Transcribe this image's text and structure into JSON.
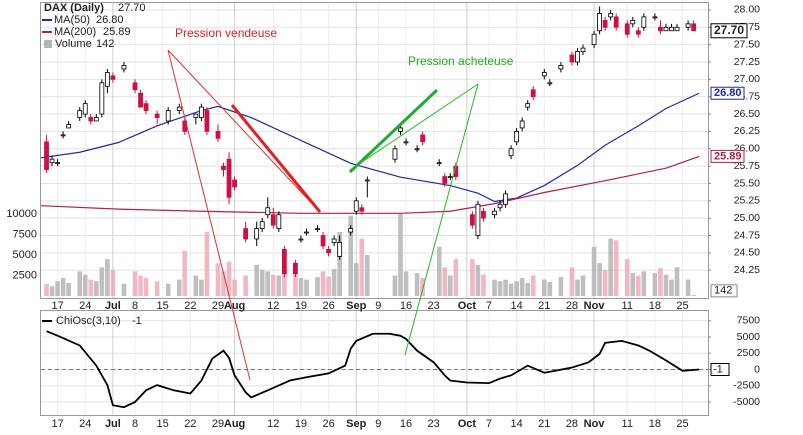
{
  "chart_data": [
    {
      "type": "candlestick",
      "name": "DAX (Daily)",
      "close_label": "27.70",
      "annotations": [
        "Pression vendeuse",
        "Pression acheteuse"
      ],
      "up_color": "#ffffff",
      "down_color": "#cc1144",
      "edge_color": "#000000",
      "x": [
        -2,
        -1,
        0,
        1,
        2,
        4,
        5,
        6,
        7,
        8,
        9,
        10,
        12,
        14,
        15,
        16,
        18,
        20,
        22,
        23,
        25,
        26,
        27,
        29,
        30,
        31,
        32,
        34,
        36,
        37,
        38,
        39,
        40,
        41,
        43,
        44,
        45,
        47,
        48,
        49,
        50,
        51,
        53,
        54,
        55,
        56,
        61,
        62,
        63,
        65,
        66,
        69,
        70,
        71,
        72,
        75,
        76,
        77,
        79,
        80,
        81,
        82,
        83,
        84,
        85,
        86,
        88,
        89,
        91,
        93,
        94,
        95,
        97,
        98,
        99,
        100,
        101,
        103,
        104,
        105,
        106,
        108,
        109,
        110,
        111,
        112,
        114,
        115
      ],
      "open": [
        26.1,
        25.8,
        25.8,
        26.2,
        26.3,
        26.45,
        26.5,
        26.45,
        26.4,
        26.5,
        26.9,
        27.05,
        27.15,
        26.95,
        26.8,
        26.65,
        26.5,
        26.4,
        26.55,
        26.4,
        26.45,
        26.45,
        26.55,
        26.25,
        25.75,
        25.85,
        25.55,
        24.85,
        24.7,
        24.85,
        25.05,
        25.05,
        24.85,
        24.55,
        24.35,
        24.7,
        24.8,
        24.85,
        24.75,
        24.55,
        24.65,
        24.45,
        24.8,
        25.1,
        25.15,
        25.55,
        25.85,
        26.25,
        26.1,
        26.0,
        26.2,
        25.8,
        25.6,
        25.6,
        25.75,
        25.05,
        24.75,
        25.1,
        25.05,
        25.15,
        25.2,
        25.9,
        26.1,
        26.3,
        26.6,
        26.85,
        27.05,
        26.95,
        27.15,
        27.35,
        27.25,
        27.4,
        27.5,
        27.7,
        27.85,
        27.9,
        27.9,
        27.8,
        27.8,
        27.7,
        27.75,
        27.9,
        27.75,
        27.7,
        27.7,
        27.7,
        27.75,
        27.8
      ],
      "high": [
        26.2,
        25.9,
        25.85,
        26.25,
        26.4,
        26.6,
        26.7,
        26.5,
        26.5,
        27.0,
        27.15,
        27.1,
        27.25,
        27.0,
        26.85,
        26.7,
        26.55,
        26.6,
        26.65,
        26.45,
        26.5,
        26.65,
        26.6,
        26.35,
        25.8,
        25.95,
        25.6,
        24.95,
        24.95,
        25.0,
        25.3,
        25.15,
        25.1,
        24.6,
        24.4,
        24.75,
        24.85,
        24.9,
        24.8,
        24.6,
        24.75,
        24.75,
        24.9,
        25.3,
        25.2,
        25.6,
        26.05,
        26.35,
        26.15,
        26.05,
        26.25,
        25.85,
        25.65,
        25.65,
        25.8,
        25.1,
        25.25,
        25.15,
        25.15,
        25.25,
        25.4,
        26.05,
        26.3,
        26.45,
        26.7,
        26.9,
        27.15,
        27.0,
        27.25,
        27.4,
        27.45,
        27.5,
        27.7,
        28.05,
        27.9,
        28.0,
        27.95,
        27.85,
        27.9,
        27.75,
        27.95,
        27.95,
        27.85,
        27.8,
        27.8,
        27.8,
        27.85,
        27.85
      ],
      "low": [
        25.65,
        25.75,
        25.75,
        26.15,
        26.3,
        26.4,
        26.45,
        26.35,
        26.4,
        26.45,
        26.8,
        26.95,
        27.1,
        26.8,
        26.6,
        26.5,
        26.35,
        26.35,
        26.5,
        26.2,
        26.35,
        26.4,
        26.2,
        26.1,
        25.6,
        25.2,
        25.4,
        24.65,
        24.6,
        24.8,
        25.0,
        24.85,
        24.8,
        24.15,
        24.15,
        24.65,
        24.75,
        24.8,
        24.55,
        24.45,
        24.6,
        24.4,
        24.75,
        25.05,
        25.05,
        25.3,
        25.8,
        26.2,
        26.05,
        25.95,
        26.05,
        25.75,
        25.45,
        25.55,
        25.55,
        24.85,
        24.7,
        24.95,
        25.0,
        25.1,
        25.15,
        25.85,
        26.05,
        26.25,
        26.55,
        26.7,
        27.0,
        26.9,
        27.1,
        27.2,
        27.2,
        27.35,
        27.45,
        27.65,
        27.7,
        27.85,
        27.7,
        27.6,
        27.75,
        27.6,
        27.7,
        27.85,
        27.65,
        27.7,
        27.7,
        27.7,
        27.7,
        27.7
      ],
      "close": [
        25.7,
        25.85,
        25.8,
        26.2,
        26.35,
        26.55,
        26.65,
        26.4,
        26.45,
        26.95,
        27.1,
        27.0,
        27.2,
        26.85,
        26.6,
        26.55,
        26.45,
        26.55,
        26.6,
        26.25,
        26.5,
        26.6,
        26.25,
        26.15,
        25.7,
        25.3,
        25.45,
        24.7,
        24.85,
        24.95,
        25.15,
        24.9,
        25.05,
        24.2,
        24.2,
        24.7,
        24.8,
        24.85,
        24.6,
        24.5,
        24.7,
        24.65,
        24.85,
        25.25,
        25.1,
        25.55,
        26.0,
        26.3,
        26.1,
        26.0,
        26.1,
        25.8,
        25.5,
        25.6,
        25.6,
        24.9,
        25.2,
        25.0,
        25.1,
        25.2,
        25.35,
        26.0,
        26.25,
        26.4,
        26.65,
        26.75,
        27.1,
        26.95,
        27.2,
        27.25,
        27.4,
        27.45,
        27.65,
        27.95,
        27.75,
        27.95,
        27.75,
        27.65,
        27.85,
        27.65,
        27.9,
        27.9,
        27.7,
        27.75,
        27.75,
        27.75,
        27.8,
        27.7
      ],
      "volume_name": "Volume",
      "volume_up_color": "#b4b4b4",
      "volume_down_color": "#eeaabb",
      "volume": [
        1500,
        1200,
        1800,
        2200,
        1600,
        3000,
        2600,
        2000,
        1800,
        3500,
        4500,
        3200,
        1500,
        3000,
        2500,
        2200,
        1800,
        1500,
        2000,
        5500,
        2500,
        2000,
        7800,
        4000,
        3000,
        4200,
        2000,
        2500,
        3800,
        3200,
        3000,
        2600,
        2500,
        3600,
        2800,
        2200,
        2000,
        2300,
        3000,
        2400,
        3300,
        7800,
        9800,
        4000,
        7000,
        5000,
        2500,
        10000,
        3000,
        2800,
        2200,
        6000,
        3500,
        2500,
        4500,
        4500,
        3800,
        2600,
        2000,
        1800,
        2000,
        1500,
        1800,
        2200,
        1600,
        2500,
        2000,
        1700,
        2300,
        3500,
        2000,
        2500,
        6000,
        4000,
        3200,
        7000,
        6800,
        4500,
        2800,
        2500,
        3000,
        2800,
        3400,
        2600,
        2000,
        3500,
        2000,
        142
      ],
      "vlim": [
        0,
        36000
      ],
      "vticks": [
        2500,
        5000,
        7500,
        10000
      ],
      "ma": [
        {
          "name": "MA(50)",
          "color": "#1f2aa0",
          "last_label": "26.80",
          "x": [
            -3,
            4,
            11,
            18,
            26,
            29,
            35,
            44,
            53,
            62,
            71,
            76,
            79,
            83,
            88,
            94,
            99,
            105,
            110,
            116
          ],
          "values": [
            25.87,
            25.95,
            26.09,
            26.33,
            26.55,
            26.61,
            26.45,
            26.12,
            25.79,
            25.59,
            25.47,
            25.36,
            25.24,
            25.29,
            25.47,
            25.76,
            26.05,
            26.33,
            26.58,
            26.8
          ]
        },
        {
          "name": "MA(200)",
          "color": "#b0204a",
          "last_label": "25.89",
          "x": [
            -3,
            11,
            26,
            44,
            62,
            71,
            79,
            88,
            99,
            110,
            116
          ],
          "values": [
            25.18,
            25.13,
            25.1,
            25.07,
            25.07,
            25.1,
            25.21,
            25.37,
            25.54,
            25.72,
            25.89
          ]
        }
      ],
      "xlim": [
        -3,
        117.6
      ],
      "ylim": [
        23.85,
        28.1
      ],
      "yticks": [
        {
          "value": 24.25,
          "label": "24.25"
        },
        {
          "value": 24.5,
          "label": "24.50"
        },
        {
          "value": 24.75,
          "label": "24.75"
        },
        {
          "value": 25,
          "label": "25.00"
        },
        {
          "value": 25.25,
          "label": "25.25"
        },
        {
          "value": 25.5,
          "label": "25.50"
        },
        {
          "value": 25.75,
          "label": "25.75"
        },
        {
          "value": 26,
          "label": "26.00"
        },
        {
          "value": 26.25,
          "label": "26.25"
        },
        {
          "value": 26.5,
          "label": "26.50"
        },
        {
          "value": 26.75,
          "label": "26.75"
        },
        {
          "value": 27,
          "label": "27.00"
        },
        {
          "value": 27.25,
          "label": "27.25"
        },
        {
          "value": 27.5,
          "label": "27.50"
        },
        {
          "value": 27.75,
          "label": "27.75"
        },
        {
          "value": 28,
          "label": "28.00"
        }
      ],
      "xticks": [
        {
          "value": 0,
          "label": "17"
        },
        {
          "value": 5,
          "label": "24"
        },
        {
          "value": 10,
          "label": "Jul"
        },
        {
          "value": 14,
          "label": "8"
        },
        {
          "value": 19,
          "label": "15"
        },
        {
          "value": 24,
          "label": "22"
        },
        {
          "value": 29,
          "label": "29"
        },
        {
          "value": 32,
          "label": "Aug"
        },
        {
          "value": 39,
          "label": "12"
        },
        {
          "value": 44,
          "label": "19"
        },
        {
          "value": 49,
          "label": "26"
        },
        {
          "value": 54,
          "label": "Sep"
        },
        {
          "value": 58,
          "label": "9"
        },
        {
          "value": 63,
          "label": "16"
        },
        {
          "value": 68,
          "label": "23"
        },
        {
          "value": 74,
          "label": "Oct"
        },
        {
          "value": 78,
          "label": "7"
        },
        {
          "value": 83,
          "label": "14"
        },
        {
          "value": 88,
          "label": "21"
        },
        {
          "value": 93,
          "label": "28"
        },
        {
          "value": 97,
          "label": "Nov"
        },
        {
          "value": 103,
          "label": "11"
        },
        {
          "value": 108,
          "label": "18"
        },
        {
          "value": 113,
          "label": "25"
        }
      ],
      "grid": true
    },
    {
      "type": "line",
      "name": "ChiOsc(3,10)",
      "color": "#000000",
      "x": [
        -2,
        0,
        4,
        7,
        9,
        10,
        12,
        14,
        16,
        18,
        21,
        24,
        26,
        28,
        30,
        31,
        32,
        34,
        35,
        38,
        42,
        45,
        49,
        52,
        53,
        54,
        57,
        60,
        62,
        63,
        65,
        68,
        70,
        71,
        74,
        78,
        80,
        82,
        85,
        88,
        90,
        93,
        96,
        98,
        99,
        102,
        105,
        107,
        110,
        113,
        116
      ],
      "values": [
        5900,
        5200,
        3700,
        600,
        -2400,
        -5500,
        -5800,
        -5000,
        -3200,
        -2400,
        -3200,
        -3700,
        -1700,
        1700,
        2900,
        1800,
        -900,
        -3500,
        -4300,
        -3200,
        -1700,
        -1200,
        -600,
        600,
        3200,
        4400,
        5500,
        5500,
        5200,
        4700,
        2900,
        1100,
        -900,
        -1700,
        -2000,
        -2100,
        -1400,
        -900,
        600,
        -500,
        -200,
        300,
        1100,
        2400,
        4100,
        4400,
        3700,
        2900,
        1400,
        -200,
        -1
      ],
      "xlim": [
        -3,
        117.6
      ],
      "ylim": [
        -7000,
        9000
      ],
      "yticks": [
        -5000,
        -2500,
        0,
        2500,
        5000,
        7500
      ],
      "xticks": [
        {
          "value": 0,
          "label": "17"
        },
        {
          "value": 5,
          "label": "24"
        },
        {
          "value": 10,
          "label": "Jul"
        },
        {
          "value": 14,
          "label": "8"
        },
        {
          "value": 19,
          "label": "15"
        },
        {
          "value": 24,
          "label": "22"
        },
        {
          "value": 29,
          "label": "29"
        },
        {
          "value": 32,
          "label": "Aug"
        },
        {
          "value": 39,
          "label": "12"
        },
        {
          "value": 44,
          "label": "19"
        },
        {
          "value": 49,
          "label": "26"
        },
        {
          "value": 54,
          "label": "Sep"
        },
        {
          "value": 58,
          "label": "9"
        },
        {
          "value": 63,
          "label": "16"
        },
        {
          "value": 68,
          "label": "23"
        },
        {
          "value": 74,
          "label": "Oct"
        },
        {
          "value": 78,
          "label": "7"
        },
        {
          "value": 83,
          "label": "14"
        },
        {
          "value": 88,
          "label": "21"
        },
        {
          "value": 93,
          "label": "28"
        },
        {
          "value": 97,
          "label": "Nov"
        },
        {
          "value": 103,
          "label": "11"
        },
        {
          "value": 108,
          "label": "18"
        },
        {
          "value": 113,
          "label": "25"
        }
      ],
      "grid": true
    }
  ]
}
